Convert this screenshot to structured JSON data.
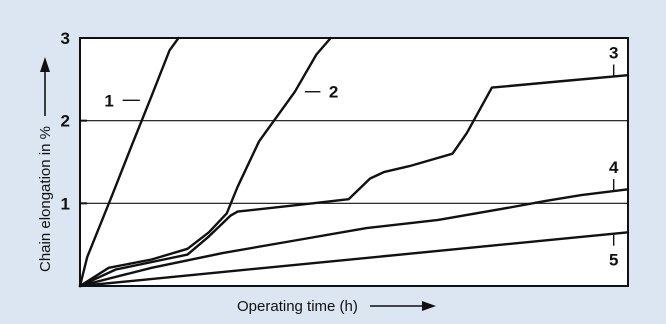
{
  "chart_data": {
    "type": "line",
    "xlabel": "Operating time (h)",
    "ylabel": "Chain elongation in %",
    "ylim": [
      0,
      3
    ],
    "yticks": [
      1,
      2,
      3
    ],
    "grid": true,
    "colors": {
      "background": "#dbe6f2",
      "plot": "#ffffff",
      "line": "#111111"
    },
    "series": [
      {
        "name": "1",
        "x": [
          0,
          0.2,
          0.9,
          1.4,
          2.0,
          2.5,
          2.75
        ],
        "y": [
          0,
          0.35,
          1.1,
          1.65,
          2.3,
          2.85,
          3.0
        ]
      },
      {
        "name": "2",
        "x": [
          0,
          0.8,
          2.0,
          3.0,
          3.6,
          4.1,
          4.4,
          5.0,
          6.0,
          6.6,
          7.0
        ],
        "y": [
          0,
          0.22,
          0.32,
          0.45,
          0.65,
          0.88,
          1.2,
          1.75,
          2.35,
          2.8,
          3.0
        ]
      },
      {
        "name": "3",
        "x": [
          0,
          1.0,
          3.0,
          3.6,
          4.2,
          4.4,
          6.5,
          7.5,
          8.1,
          8.5,
          9.2,
          9.6,
          10.4,
          10.8,
          11.5,
          13.5,
          15.3
        ],
        "y": [
          0,
          0.2,
          0.38,
          0.6,
          0.85,
          0.9,
          1.0,
          1.05,
          1.3,
          1.38,
          1.45,
          1.5,
          1.6,
          1.85,
          2.4,
          2.48,
          2.55
        ]
      },
      {
        "name": "4",
        "x": [
          0,
          2.0,
          4.0,
          6.0,
          8.0,
          10.0,
          12.0,
          13.0,
          14.0,
          15.3
        ],
        "y": [
          0,
          0.22,
          0.4,
          0.55,
          0.7,
          0.8,
          0.95,
          1.03,
          1.1,
          1.17
        ]
      },
      {
        "name": "5",
        "x": [
          0,
          15.3
        ],
        "y": [
          0,
          0.65
        ]
      }
    ],
    "curve_label_positions": [
      {
        "label": "1",
        "x": 1.95,
        "y": 2.62
      },
      {
        "label": "2",
        "x": 6.0,
        "y": 2.62
      },
      {
        "label": "3",
        "x": 14.9,
        "y": 2.85
      },
      {
        "label": "4",
        "x": 14.9,
        "y": 1.45
      },
      {
        "label": "5",
        "x": 14.9,
        "y": 0.2
      }
    ]
  }
}
